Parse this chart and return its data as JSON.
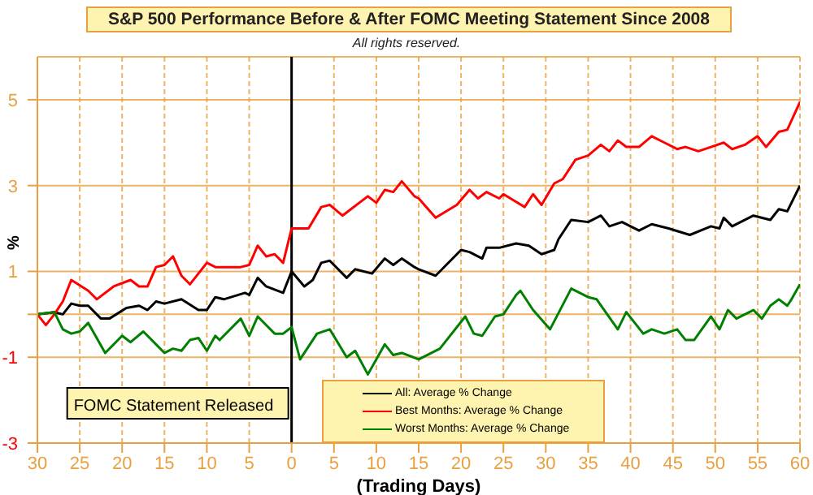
{
  "chart_data": {
    "type": "line",
    "title": "S&P 500 Performance Before & After FOMC Meeting Statement Since 2008",
    "annotations": [
      "All rights reserved."
    ],
    "xlabel": "(Trading Days)",
    "ylabel": "%",
    "xlim": [
      -30,
      60
    ],
    "xticks": [
      {
        "value": -30,
        "label": "30"
      },
      {
        "value": -25,
        "label": "25"
      },
      {
        "value": -20,
        "label": "20"
      },
      {
        "value": -15,
        "label": "15"
      },
      {
        "value": -10,
        "label": "10"
      },
      {
        "value": -5,
        "label": "5"
      },
      0,
      5,
      10,
      15,
      20,
      25,
      30,
      35,
      40,
      45,
      50,
      55,
      60
    ],
    "ylim": [
      -3,
      6
    ],
    "yticks": [
      -3,
      -1,
      {
        "value": 0,
        "label": null
      },
      1,
      3,
      5
    ],
    "grid": true,
    "legend": "bottom",
    "marker": "none",
    "line_style": "solid",
    "ref_lines": [
      {
        "axis": "x",
        "value": 0,
        "label": "FOMC Statement Released",
        "color": "#000000"
      }
    ],
    "series": [
      {
        "name": "All: Average % Change",
        "color": "#000000",
        "x": [
          -30,
          -28,
          -27,
          -26,
          -25,
          -24,
          -22.5,
          -21.5,
          -19.5,
          -18,
          -17,
          -16,
          -15,
          -13,
          -11,
          -10,
          -9,
          -8,
          -5.5,
          -5,
          -4,
          -3,
          -1,
          0,
          1.5,
          2.5,
          3.5,
          4.5,
          6.5,
          7.5,
          9.5,
          11,
          12,
          13,
          14.5,
          15,
          17,
          20,
          21,
          22.5,
          23,
          24.5,
          26.5,
          28,
          29.5,
          31,
          31.5,
          33,
          35,
          36.5,
          37.5,
          39,
          41,
          42.5,
          44.5,
          47,
          49.5,
          50.5,
          51,
          52,
          54.5,
          56.5,
          57.5,
          58.5,
          60
        ],
        "values": [
          0,
          0.05,
          0,
          0.25,
          0.2,
          0.2,
          -0.1,
          -0.1,
          0.15,
          0.2,
          0.1,
          0.3,
          0.25,
          0.35,
          0.1,
          0.1,
          0.4,
          0.35,
          0.5,
          0.45,
          0.85,
          0.65,
          0.5,
          1.0,
          0.65,
          0.8,
          1.2,
          1.25,
          0.85,
          1.05,
          0.95,
          1.3,
          1.15,
          1.3,
          1.1,
          1.05,
          0.9,
          1.5,
          1.45,
          1.3,
          1.55,
          1.55,
          1.65,
          1.6,
          1.4,
          1.5,
          1.75,
          2.2,
          2.15,
          2.3,
          2.05,
          2.15,
          1.95,
          2.1,
          2.0,
          1.85,
          2.05,
          2.0,
          2.25,
          2.05,
          2.3,
          2.2,
          2.45,
          2.4,
          3.0
        ]
      },
      {
        "name": "Best Months: Average % Change",
        "color": "#ff0000",
        "x": [
          -30,
          -29,
          -28,
          -27,
          -26,
          -24,
          -23,
          -21,
          -19,
          -18,
          -17,
          -16,
          -15,
          -14,
          -13,
          -12,
          -10,
          -9,
          -6,
          -5,
          -4,
          -3,
          -2,
          -1,
          0,
          2,
          3.5,
          4.5,
          6,
          9,
          10,
          11,
          12,
          13,
          14.5,
          15,
          17,
          19.5,
          21,
          22,
          23,
          24.5,
          25,
          27.5,
          28.5,
          29.5,
          31,
          32,
          33.5,
          35,
          36.5,
          37.5,
          38.5,
          39.5,
          41,
          42.5,
          44,
          45.5,
          46.5,
          48,
          49.5,
          51,
          52,
          53.5,
          55,
          56,
          57.5,
          58.5,
          60
        ],
        "values": [
          0,
          -0.25,
          0,
          0.3,
          0.8,
          0.55,
          0.35,
          0.65,
          0.8,
          0.65,
          0.65,
          1.1,
          1.15,
          1.35,
          0.9,
          0.7,
          1.2,
          1.1,
          1.1,
          1.15,
          1.6,
          1.35,
          1.4,
          1.2,
          2.0,
          2.0,
          2.5,
          2.55,
          2.3,
          2.75,
          2.6,
          2.9,
          2.85,
          3.1,
          2.75,
          2.7,
          2.25,
          2.55,
          2.9,
          2.7,
          2.85,
          2.7,
          2.8,
          2.5,
          2.8,
          2.55,
          3.05,
          3.15,
          3.6,
          3.7,
          3.95,
          3.8,
          4.05,
          3.9,
          3.9,
          4.15,
          4.0,
          3.85,
          3.9,
          3.8,
          3.9,
          4.0,
          3.85,
          3.95,
          4.15,
          3.9,
          4.25,
          4.3,
          4.95
        ]
      },
      {
        "name": "Worst Months: Average % Change",
        "color": "#008000",
        "x": [
          -30,
          -28,
          -27,
          -26,
          -25,
          -24,
          -22,
          -20,
          -19,
          -17.5,
          -16,
          -15,
          -14,
          -13,
          -12,
          -11,
          -10,
          -9,
          -8.5,
          -6,
          -5,
          -4,
          -2,
          -1,
          0,
          1,
          3,
          4.5,
          6.5,
          7.5,
          9,
          11,
          12,
          13,
          15,
          17.5,
          20.5,
          21.5,
          22.5,
          24,
          25,
          26.5,
          27,
          28.5,
          30.5,
          33,
          35,
          36,
          38.5,
          39.5,
          41.5,
          42.5,
          44,
          45.5,
          46.5,
          47.5,
          49.5,
          50.5,
          51.5,
          52.5,
          54.5,
          55.5,
          56.5,
          57.5,
          58.5,
          59,
          60
        ],
        "values": [
          0,
          0.05,
          -0.35,
          -0.45,
          -0.4,
          -0.2,
          -0.9,
          -0.5,
          -0.65,
          -0.4,
          -0.7,
          -0.9,
          -0.8,
          -0.85,
          -0.6,
          -0.55,
          -0.85,
          -0.5,
          -0.6,
          -0.1,
          -0.5,
          -0.05,
          -0.45,
          -0.45,
          -0.3,
          -1.05,
          -0.45,
          -0.35,
          -1.0,
          -0.85,
          -1.4,
          -0.7,
          -0.95,
          -0.9,
          -1.05,
          -0.8,
          -0.05,
          -0.45,
          -0.5,
          -0.05,
          0,
          0.45,
          0.55,
          0.1,
          -0.35,
          0.6,
          0.4,
          0.35,
          -0.35,
          0.05,
          -0.45,
          -0.35,
          -0.45,
          -0.35,
          -0.6,
          -0.6,
          -0.05,
          -0.35,
          0.1,
          -0.1,
          0.1,
          -0.1,
          0.2,
          0.35,
          0.2,
          0.35,
          0.7
        ]
      }
    ]
  }
}
